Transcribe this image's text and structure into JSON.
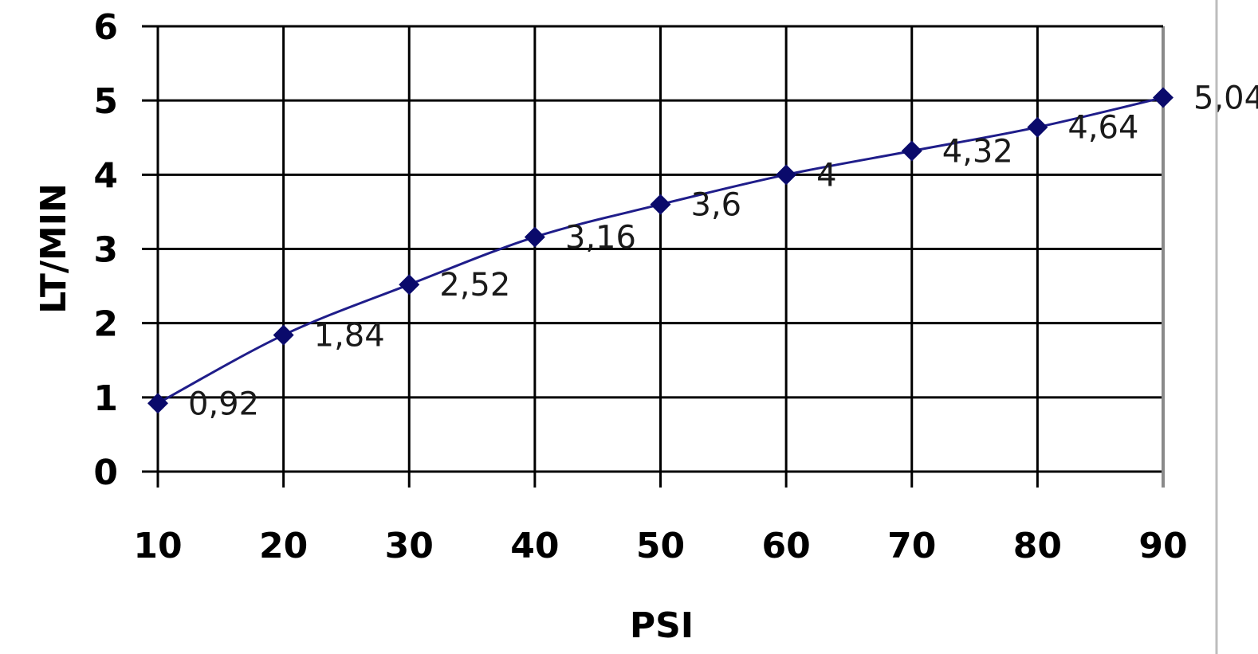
{
  "chart_data": {
    "type": "line",
    "xlabel": "PSI",
    "ylabel": "LT/MIN",
    "x": [
      10,
      20,
      30,
      40,
      50,
      60,
      70,
      80,
      90
    ],
    "x_tick_labels": [
      "10",
      "20",
      "30",
      "40",
      "50",
      "60",
      "70",
      "80",
      "90"
    ],
    "y_tick_labels": [
      "0",
      "1",
      "2",
      "3",
      "4",
      "5",
      "6"
    ],
    "ylim": [
      0,
      6
    ],
    "grid": true,
    "legend": "none",
    "series": [
      {
        "values": [
          0.92,
          1.84,
          2.52,
          3.16,
          3.6,
          4,
          4.32,
          4.64,
          5.04
        ],
        "data_labels": [
          "0,92",
          "1,84",
          "2,52",
          "3,16",
          "3,6",
          "4",
          "4,32",
          "4,64",
          "5,04"
        ],
        "color": "#1f1d8a",
        "marker": "diamond"
      }
    ]
  }
}
